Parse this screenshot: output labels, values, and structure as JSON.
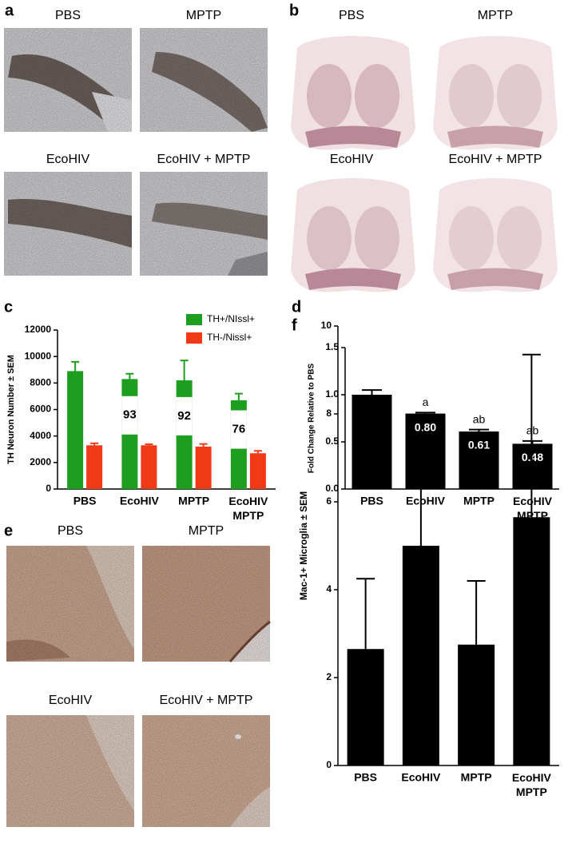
{
  "panels": {
    "a": {
      "letter": "a",
      "labels": [
        "PBS",
        "MPTP",
        "EcoHIV",
        "EcoHIV + MPTP"
      ]
    },
    "b": {
      "letter": "b",
      "labels": [
        "PBS",
        "MPTP",
        "EcoHIV",
        "EcoHIV + MPTP"
      ]
    },
    "e": {
      "letter": "e",
      "labels": [
        "PBS",
        "MPTP",
        "EcoHIV",
        "EcoHIV + MPTP"
      ]
    }
  },
  "chart_data": [
    {
      "type": "bar",
      "panel": "c",
      "y_label": "TH Neuron Number ± SEM",
      "categories": [
        "PBS",
        "EcoHIV",
        "MPTP",
        "EcoHIV\nMPTP"
      ],
      "series": [
        {
          "name": "TH+/NIssl+",
          "color": "#1e9e1e",
          "values": [
            8900,
            8300,
            8200,
            6700
          ],
          "errors": [
            700,
            400,
            1500,
            500
          ],
          "percent_labels": [
            null,
            "93",
            "92",
            "76"
          ]
        },
        {
          "name": "TH-/Nissl+",
          "color": "#f03a17",
          "values": [
            3300,
            3300,
            3200,
            2700
          ],
          "errors": [
            150,
            80,
            200,
            180
          ]
        }
      ],
      "ylim": [
        0,
        12000
      ],
      "yticks": [
        0,
        2000,
        4000,
        6000,
        8000,
        10000,
        12000
      ],
      "legend": "upper right"
    },
    {
      "type": "bar",
      "panel": "d",
      "y_label": "Fold Change Relative to PBS",
      "categories": [
        "PBS",
        "EcoHIV",
        "MPTP",
        "EcoHIV\nMPTP"
      ],
      "values": [
        1.0,
        0.8,
        0.61,
        0.48
      ],
      "errors": [
        0.05,
        0.01,
        0.02,
        0.03
      ],
      "color": "#000000",
      "value_labels": [
        null,
        "0.80",
        "0.61",
        "0.48"
      ],
      "significance": [
        null,
        "a",
        "ab",
        "ab"
      ],
      "ylim": [
        0,
        1.5
      ],
      "yticks": [
        {
          "value": 0,
          "label": "0.0"
        },
        {
          "value": 0.5,
          "label": "0.5"
        },
        {
          "value": 1,
          "label": "1.0"
        },
        {
          "value": 1.5,
          "label": "1.5"
        }
      ]
    },
    {
      "type": "bar",
      "panel": "f",
      "y_label": "Mac-1+ Microglia ± SEM",
      "categories": [
        "PBS",
        "EcoHIV",
        "MPTP",
        "EcoHIV\nMPTP"
      ],
      "values": [
        2.65,
        5.0,
        2.75,
        5.65
      ],
      "errors": [
        1.6,
        2.95,
        1.45,
        3.7
      ],
      "color": "#000000",
      "ylim": [
        0,
        10
      ],
      "yticks": [
        0,
        2,
        4,
        6,
        8,
        10
      ]
    }
  ]
}
